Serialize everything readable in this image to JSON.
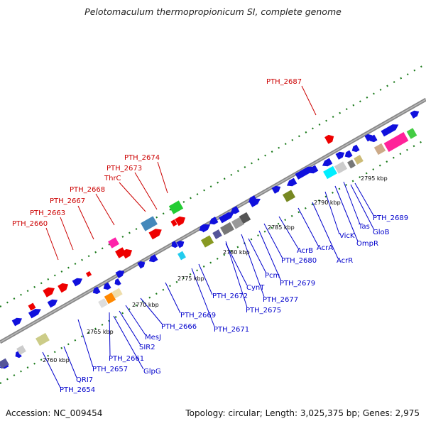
{
  "title": "Pelotomaculum thermopropionicum SI, complete genome",
  "accession": "Accession: NC_009454",
  "summary": "Topology: circular; Length: 3,025,375 bp; Genes: 2,975",
  "colors": {
    "label_top": "#cc0000",
    "label_bottom": "#0000cc",
    "backbone": "#888888",
    "ticks": "#1a7a1a"
  },
  "scale_ticks": [
    "2760 kbp",
    "2765 kbp",
    "2770 kbp",
    "2775 kbp",
    "2780 kbp",
    "2785 kbp",
    "2790 kbp",
    "2795 kbp"
  ],
  "top_labels": [
    "PTH_2687",
    "PTH_2674",
    "PTH_2673",
    "ThrC",
    "PTH_2668",
    "PTH_2667",
    "PTH_2663",
    "PTH_2660"
  ],
  "bottom_labels": [
    "PTH_2689",
    "GloB",
    "Tas",
    "OmpR",
    "VicK",
    "AcrR",
    "AcrA",
    "AcrB",
    "PTH_2680",
    "PTH_2679",
    "PTH_2677",
    "Pcm",
    "PTH_2675",
    "CynT",
    "PTH_2672",
    "PTH_2671",
    "PTH_2669",
    "PTH_2666",
    "MesJ",
    "SIR2",
    "PTH_2661",
    "GlpG",
    "PTH_2657",
    "QRI7",
    "PTH_2654"
  ]
}
